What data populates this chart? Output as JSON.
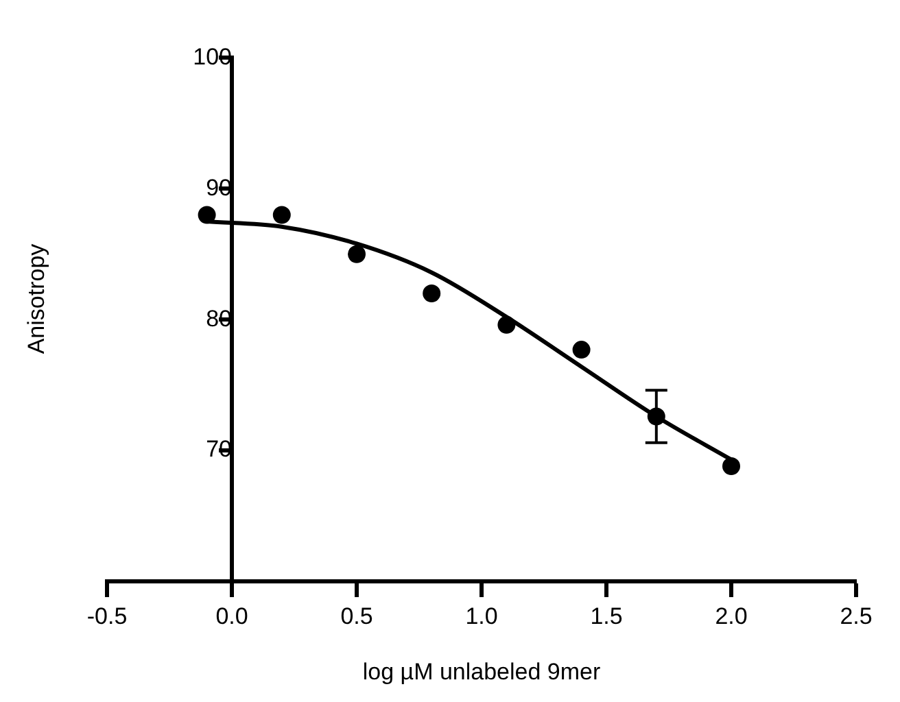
{
  "chart_data": {
    "type": "scatter",
    "xlabel": "log µM unlabeled 9mer",
    "ylabel": "Anisotropy",
    "xlim": [
      -0.5,
      2.5
    ],
    "xticks": [
      {
        "value": -0.5,
        "label": "-0.5"
      },
      {
        "value": 0,
        "label": "0.0"
      },
      {
        "value": 0.5,
        "label": "0.5"
      },
      {
        "value": 1,
        "label": "1.0"
      },
      {
        "value": 1.5,
        "label": "1.5"
      },
      {
        "value": 2,
        "label": "2.0"
      },
      {
        "value": 2.5,
        "label": "2.5"
      }
    ],
    "ylim": [
      60,
      100
    ],
    "yticks": [
      70,
      80,
      90,
      100
    ],
    "grid": false,
    "legend": false,
    "marker": "circle",
    "series": [
      {
        "color": "#000000",
        "x": [
          -0.1,
          0.2,
          0.5,
          0.8,
          1.1,
          1.4,
          1.7,
          2.0
        ],
        "values": [
          88,
          88,
          85,
          82,
          79.6,
          77.7,
          72.6,
          68.8
        ],
        "errors": [
          null,
          null,
          null,
          null,
          null,
          null,
          2,
          null
        ]
      },
      {
        "type": "line",
        "color": "#000000",
        "marker": "none",
        "line_style": "solid",
        "x": [
          -0.1,
          0.2,
          0.5,
          0.8,
          1.1,
          1.4,
          1.7,
          2.0
        ],
        "values": [
          87.5,
          87.1,
          85.8,
          83.6,
          80.2,
          76.4,
          72.6,
          69.3
        ]
      }
    ]
  }
}
